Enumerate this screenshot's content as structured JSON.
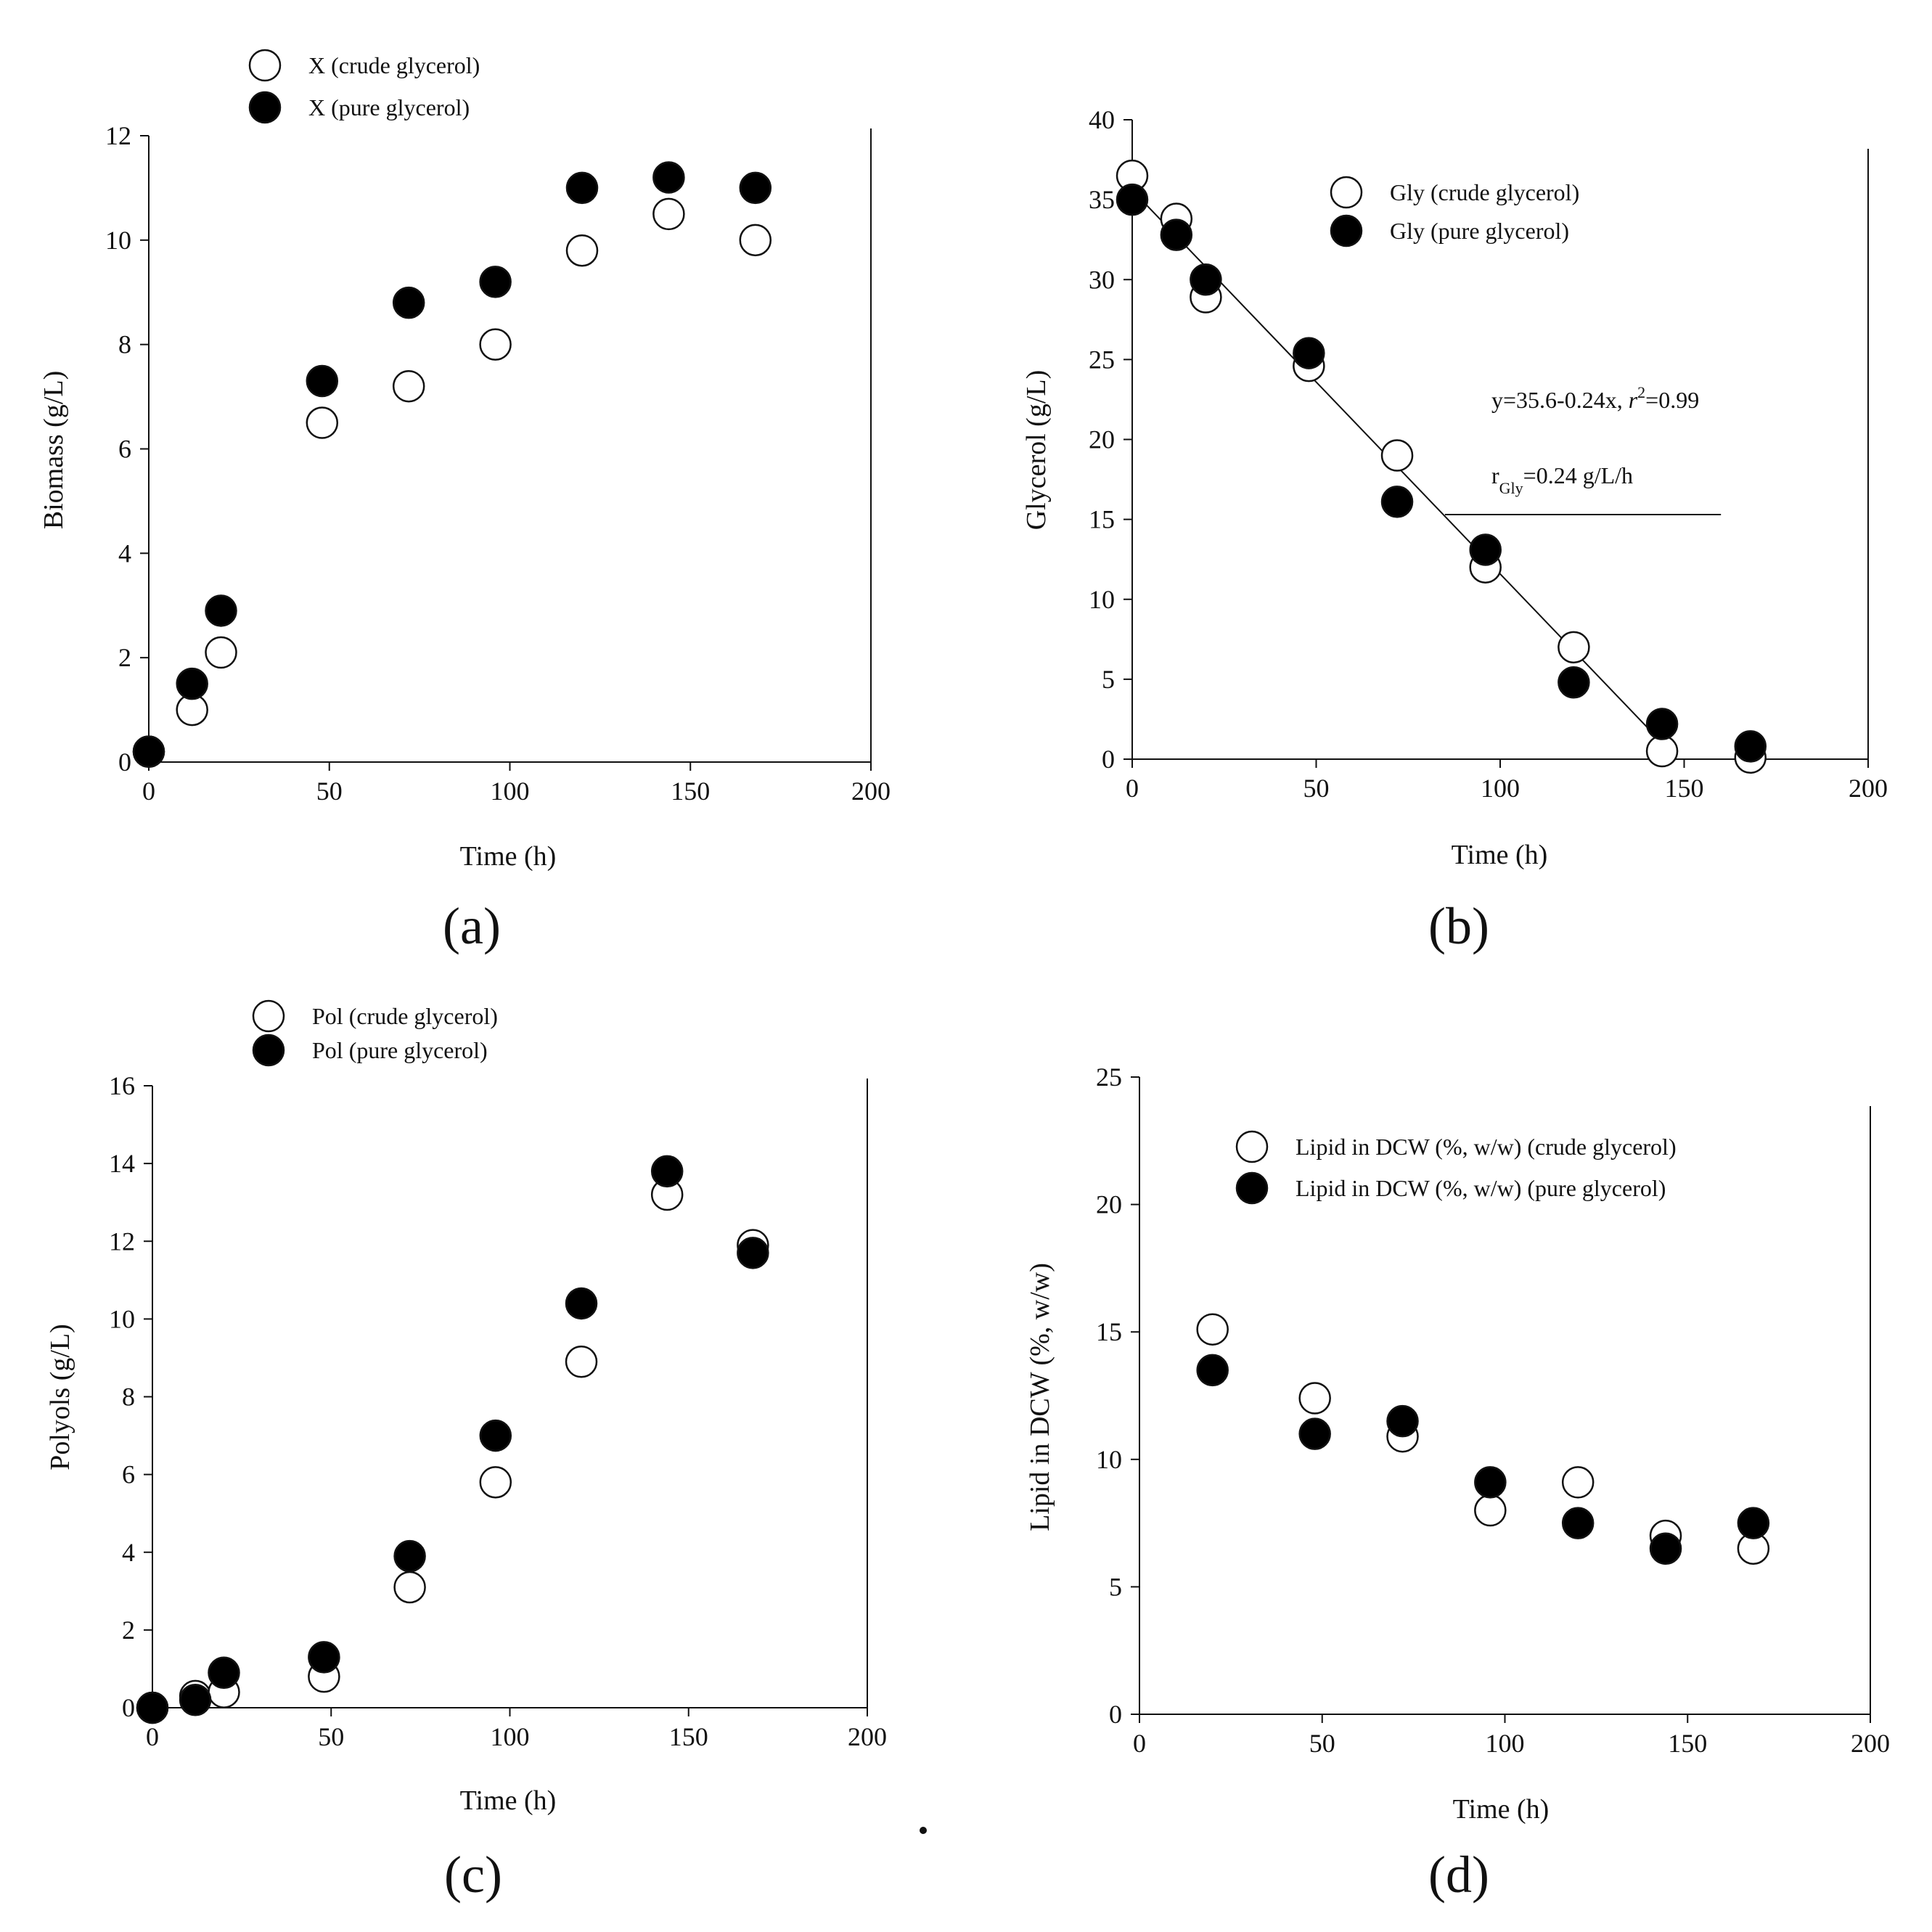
{
  "figure": {
    "colors": {
      "ink": "#111111",
      "open_fill": "#ffffff",
      "filled_fill": "#000000"
    }
  },
  "chart_data": [
    {
      "id": "a",
      "type": "scatter",
      "panel_label": "(a)",
      "xlabel": "Time (h)",
      "ylabel": "Biomass (g/L)",
      "xlim": [
        0,
        200
      ],
      "ylim": [
        0,
        12
      ],
      "xticks": [
        0,
        50,
        100,
        150,
        200
      ],
      "yticks": [
        0,
        2,
        4,
        6,
        8,
        10,
        12
      ],
      "legend_position": "top-left, above plot",
      "series": [
        {
          "name": "X (crude glycerol)",
          "marker": "open",
          "x": [
            0,
            12,
            20,
            48,
            72,
            96,
            120,
            144,
            168
          ],
          "y": [
            0.2,
            1.0,
            2.1,
            6.5,
            7.2,
            8.0,
            9.8,
            10.5,
            10.0
          ]
        },
        {
          "name": "X (pure glycerol)",
          "marker": "filled",
          "x": [
            0,
            12,
            20,
            48,
            72,
            96,
            120,
            144,
            168
          ],
          "y": [
            0.2,
            1.5,
            2.9,
            7.3,
            8.8,
            9.2,
            11.0,
            11.2,
            11.0
          ]
        }
      ]
    },
    {
      "id": "b",
      "type": "scatter",
      "panel_label": "(b)",
      "xlabel": "Time (h)",
      "ylabel": "Glycerol (g/L)",
      "xlim": [
        0,
        200
      ],
      "ylim": [
        0,
        40
      ],
      "xticks": [
        0,
        50,
        100,
        150,
        200
      ],
      "yticks": [
        0,
        5,
        10,
        15,
        20,
        25,
        30,
        35,
        40
      ],
      "legend_position": "top-center",
      "series": [
        {
          "name": "Gly (crude glycerol)",
          "marker": "open",
          "x": [
            0,
            12,
            20,
            48,
            72,
            96,
            120,
            144,
            168
          ],
          "y": [
            36.5,
            33.8,
            28.9,
            24.6,
            19.0,
            12.0,
            7.0,
            0.5,
            0.1
          ]
        },
        {
          "name": "Gly (pure glycerol)",
          "marker": "filled",
          "x": [
            0,
            12,
            20,
            48,
            72,
            96,
            120,
            144,
            168
          ],
          "y": [
            35.0,
            32.8,
            30.0,
            25.4,
            16.1,
            13.1,
            4.8,
            2.2,
            0.8
          ]
        }
      ],
      "fit_line": {
        "x": [
          0,
          147
        ],
        "y": [
          35.6,
          0.3
        ]
      },
      "rate_marker_line": {
        "x": [
          85,
          160
        ],
        "y": [
          15.3,
          15.3
        ]
      },
      "annotations": {
        "equation_prefix": "y=35.6-0.24x, ",
        "equation_r": "r",
        "equation_sup": "2",
        "equation_suffix": "=0.99",
        "rate_symbol": "r",
        "rate_subscript": "Gly",
        "rate_value": "=0.24 g/L/h"
      }
    },
    {
      "id": "c",
      "type": "scatter",
      "panel_label": "(c)",
      "xlabel": "Time (h)",
      "ylabel": "Polyols (g/L)",
      "xlim": [
        0,
        200
      ],
      "ylim": [
        0,
        16
      ],
      "xticks": [
        0,
        50,
        100,
        150,
        200
      ],
      "yticks": [
        0,
        2,
        4,
        6,
        8,
        10,
        12,
        14,
        16
      ],
      "legend_position": "top-left, above plot",
      "series": [
        {
          "name": "Pol (crude glycerol)",
          "marker": "open",
          "x": [
            0,
            12,
            20,
            48,
            72,
            96,
            120,
            144,
            168
          ],
          "y": [
            0.0,
            0.3,
            0.4,
            0.8,
            3.1,
            5.8,
            8.9,
            13.2,
            11.9
          ]
        },
        {
          "name": "Pol (pure glycerol)",
          "marker": "filled",
          "x": [
            0,
            12,
            20,
            48,
            72,
            96,
            120,
            144,
            168
          ],
          "y": [
            0.0,
            0.2,
            0.9,
            1.3,
            3.9,
            7.0,
            10.4,
            13.8,
            11.7
          ]
        }
      ]
    },
    {
      "id": "d",
      "type": "scatter",
      "panel_label": "(d)",
      "xlabel": "Time (h)",
      "ylabel": "Lipid in DCW (%, w/w)",
      "xlim": [
        0,
        200
      ],
      "ylim": [
        0,
        25
      ],
      "xticks": [
        0,
        50,
        100,
        150,
        200
      ],
      "yticks": [
        0,
        5,
        10,
        15,
        20,
        25
      ],
      "legend_position": "top-center",
      "series": [
        {
          "name": "Lipid in DCW (%, w/w) (crude glycerol)",
          "marker": "open",
          "x": [
            20,
            48,
            72,
            96,
            120,
            144,
            168
          ],
          "y": [
            15.1,
            12.4,
            10.9,
            8.0,
            9.1,
            7.0,
            6.5
          ]
        },
        {
          "name": "Lipid in DCW (%, w/w) (pure glycerol)",
          "marker": "filled",
          "x": [
            20,
            48,
            72,
            96,
            120,
            144,
            168
          ],
          "y": [
            13.5,
            11.0,
            11.5,
            9.1,
            7.5,
            6.5,
            7.5
          ]
        }
      ]
    }
  ]
}
